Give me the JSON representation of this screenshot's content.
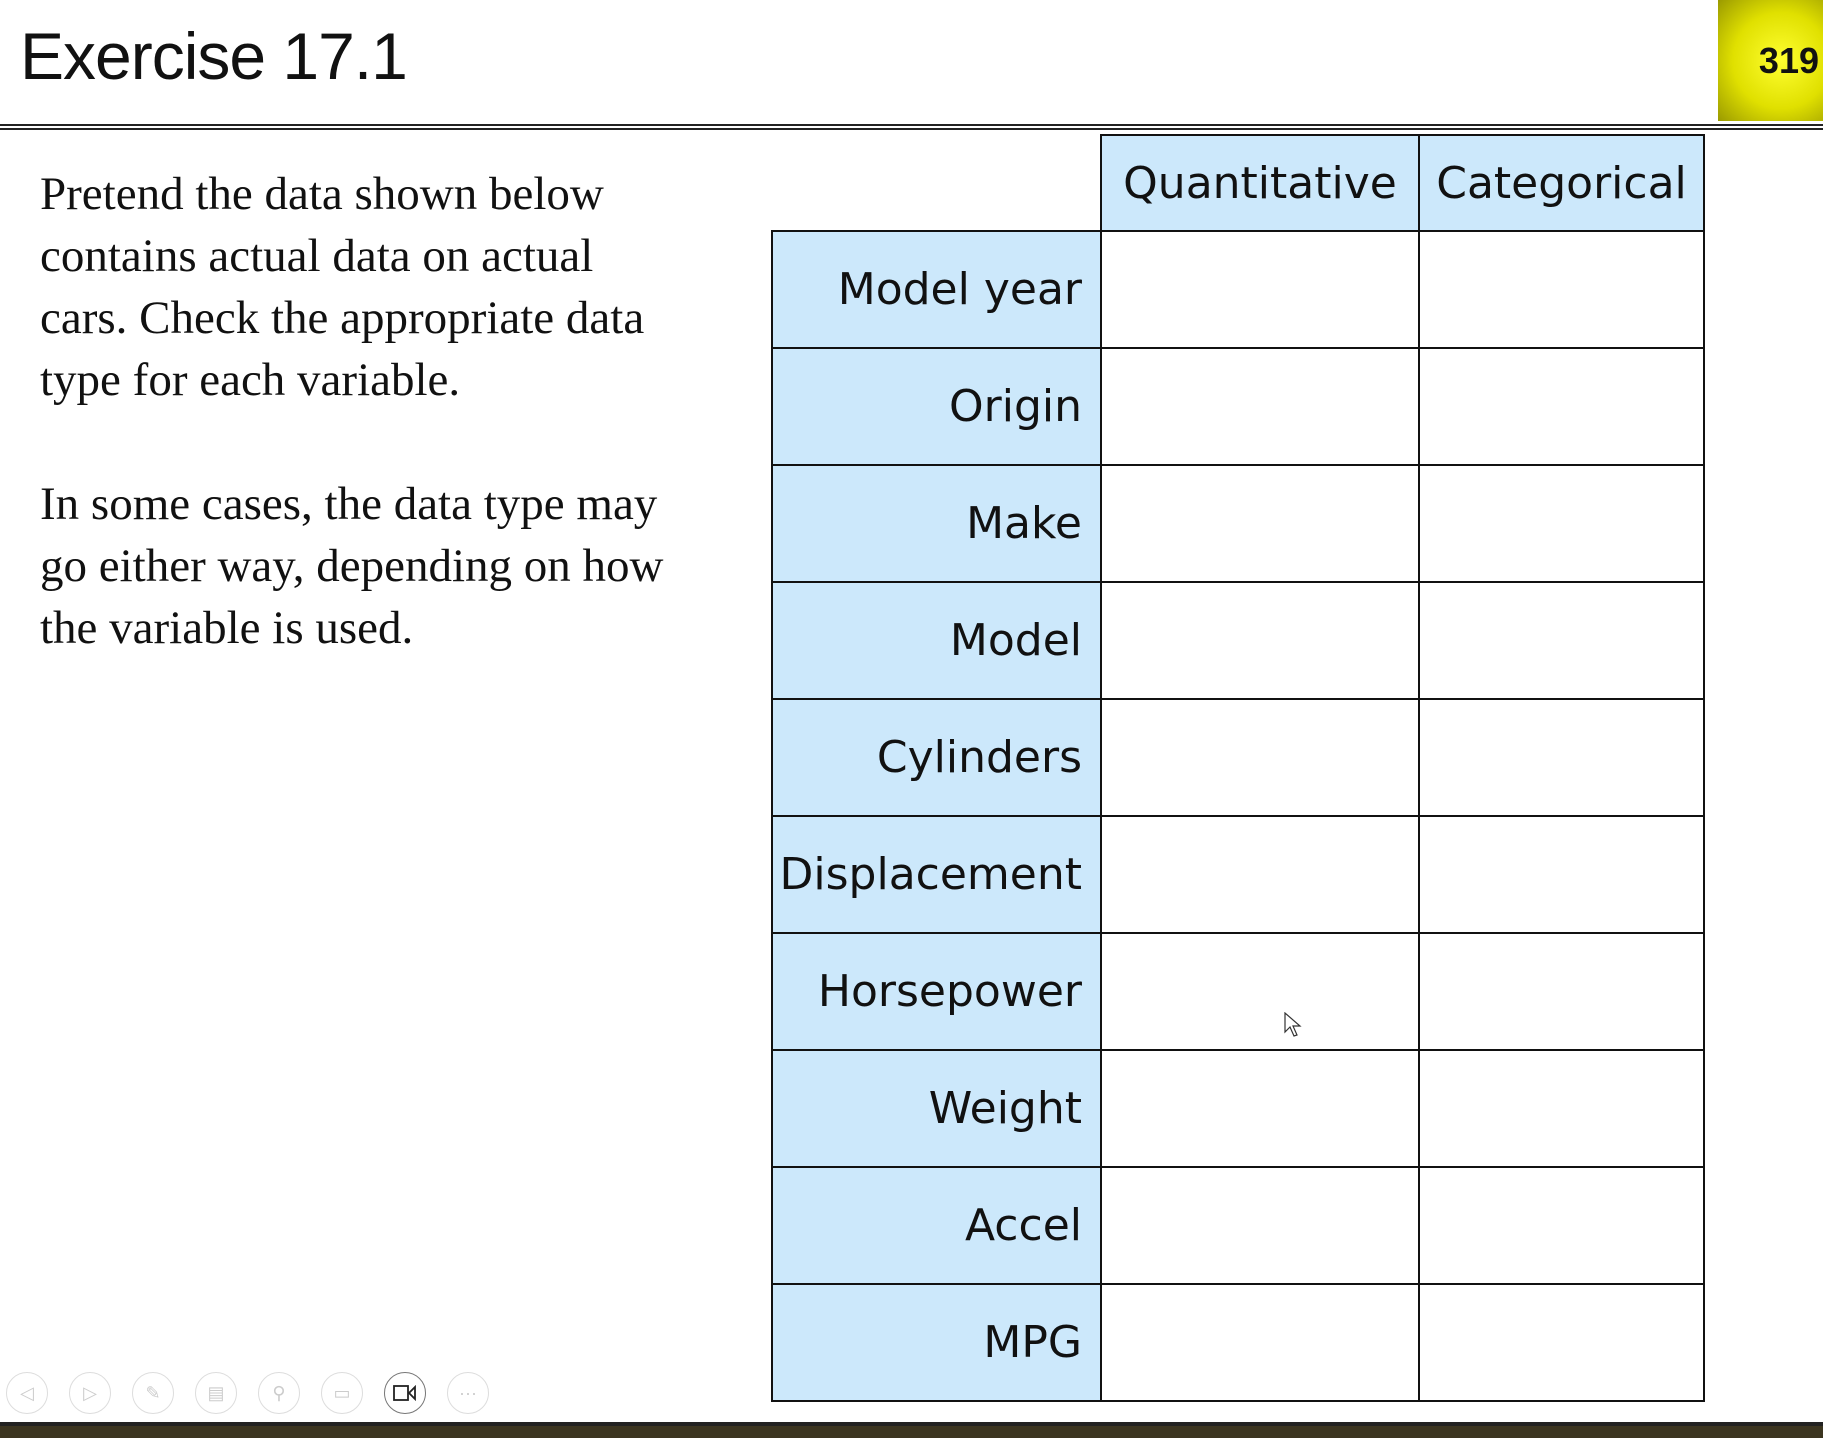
{
  "slide": {
    "title": "Exercise 17.1",
    "page_number": "319",
    "paragraphs": [
      "Pretend the data shown below contains actual data on actual cars. Check the appropriate data type for each variable.",
      "In some cases, the data type may go either way, depending on how the variable is used."
    ]
  },
  "table": {
    "columns": [
      "Quantitative",
      "Categorical"
    ],
    "rows": [
      "Model year",
      "Origin",
      "Make",
      "Model",
      "Cylinders",
      "Displacement",
      "Horsepower",
      "Weight",
      "Accel",
      "MPG"
    ]
  },
  "toolbar": {
    "icons": [
      "previous-icon",
      "next-icon",
      "pen-icon",
      "slides-icon",
      "zoom-icon",
      "subtitles-icon",
      "camera-icon",
      "more-icon"
    ]
  },
  "colors": {
    "header_fill": "#cce8fb",
    "badge": "#e6e600"
  }
}
